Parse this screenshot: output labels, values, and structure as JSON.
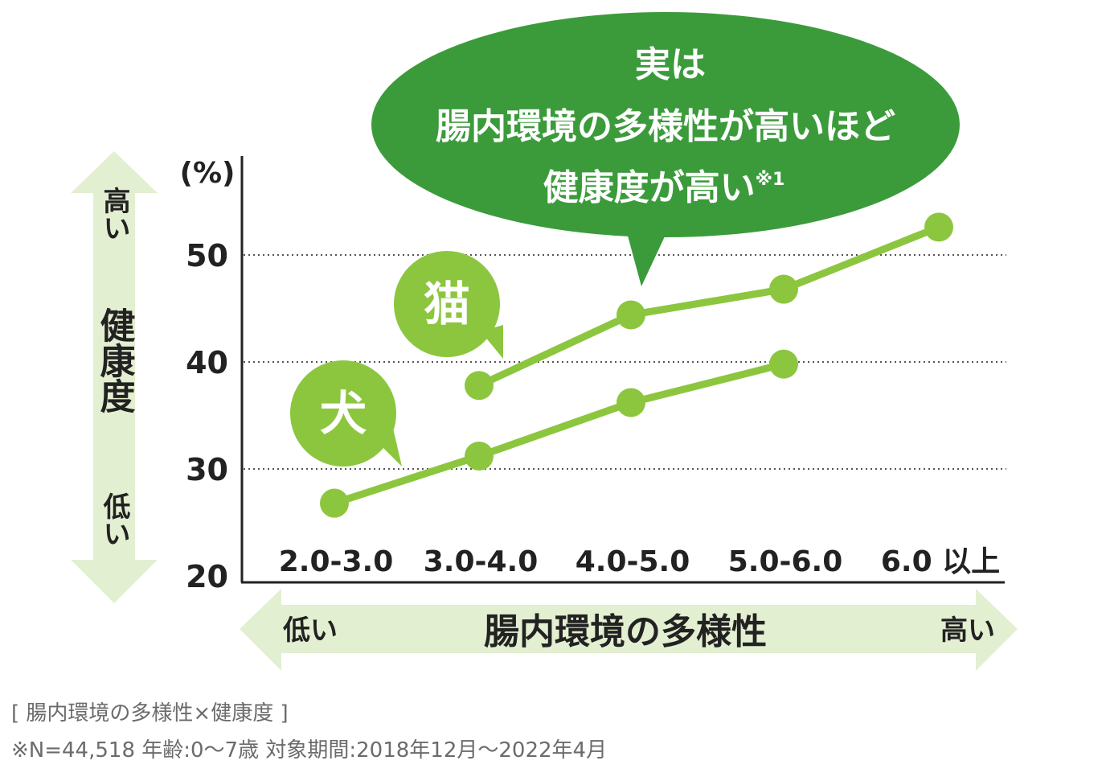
{
  "colors": {
    "line": "#8cc63f",
    "bubble": "#3b9b3b",
    "arrow_fill": "#e3efd1",
    "text_dark": "#222222",
    "caption": "#6b6b6b"
  },
  "callout": {
    "line1": "実は",
    "line2": "腸内環境の多様性が高いほど",
    "line3": "健康度が高い",
    "footnote_mark": "※1"
  },
  "y_axis_indicator": {
    "high": "高い",
    "label": "健康度",
    "low": "低い"
  },
  "x_axis_indicator": {
    "low": "低い",
    "label": "腸内環境の多様性",
    "high": "高い"
  },
  "chart_data": {
    "type": "line",
    "title": "",
    "xlabel": "腸内環境の多様性",
    "ylabel": "健康度",
    "y_unit": "(%)",
    "categories": [
      "2.0-3.0",
      "3.0-4.0",
      "4.0-5.0",
      "5.0-6.0",
      "6.0 以上"
    ],
    "ylim": [
      20,
      55
    ],
    "yticks": [
      20,
      30,
      40,
      50
    ],
    "grid": "dotted horizontal at 30, 40, 50",
    "series": [
      {
        "name": "猫",
        "values": [
          null,
          37.8,
          44.4,
          46.8,
          52.6
        ]
      },
      {
        "name": "犬",
        "values": [
          26.8,
          31.2,
          36.2,
          39.8,
          null
        ]
      }
    ]
  },
  "captions": {
    "line1": "[ 腸内環境の多様性×健康度 ]",
    "line2": "※N=44,518 年齢:0〜7歳 対象期間:2018年12月〜2022年4月"
  }
}
